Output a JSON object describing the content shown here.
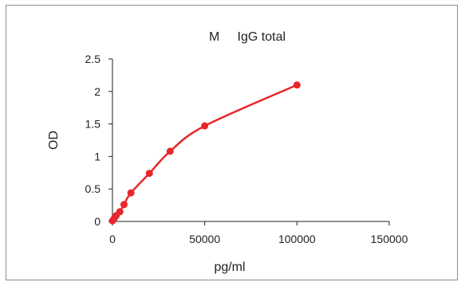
{
  "chart_data": {
    "type": "line",
    "title": "M     IgG total",
    "xlabel": "pg/ml",
    "ylabel": "OD",
    "xlim": [
      0,
      150000
    ],
    "ylim": [
      0,
      2.5
    ],
    "xticks": [
      0,
      50000,
      100000,
      150000
    ],
    "yticks": [
      0,
      0.5,
      1,
      1.5,
      2,
      2.5
    ],
    "xtick_labels": [
      "0",
      "50000",
      "100000",
      "150000"
    ],
    "ytick_labels": [
      "0",
      "0.5",
      "1",
      "1.5",
      "2",
      "2.5"
    ],
    "grid": false,
    "legend": "none",
    "series": [
      {
        "x": [
          0,
          1000,
          2000,
          4000,
          6250,
          10000,
          20000,
          31250,
          50000,
          100000
        ],
        "y": [
          0.01,
          0.05,
          0.09,
          0.15,
          0.26,
          0.44,
          0.74,
          1.08,
          1.47,
          2.1
        ],
        "color": "#e8262b",
        "marker": "circle"
      }
    ]
  }
}
